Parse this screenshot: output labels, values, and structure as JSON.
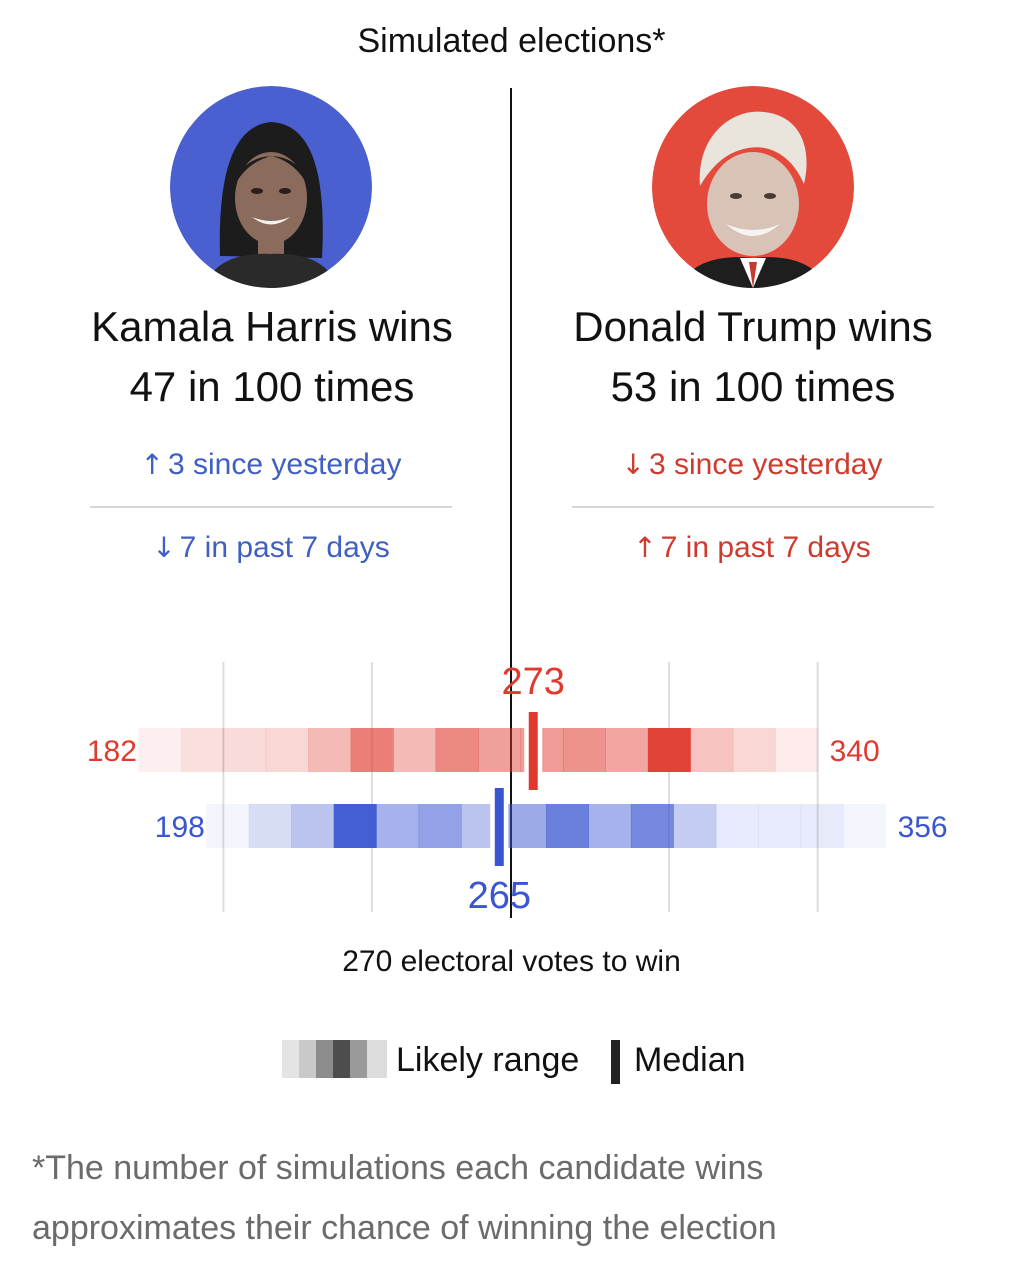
{
  "title": "Simulated elections*",
  "candidates": [
    {
      "name_line": "Kamala Harris wins",
      "odds_line": "47 in 100 times",
      "color": "#3f5fc4",
      "ring_color": "#4a5fd0",
      "change_day": {
        "arrow": "↑",
        "text": "3 since yesterday"
      },
      "change_week": {
        "arrow": "↓",
        "text": "7 in past 7 days"
      }
    },
    {
      "name_line": "Donald Trump wins",
      "odds_line": "53 in 100 times",
      "color": "#d03a2e",
      "ring_color": "#e34a3c",
      "change_day": {
        "arrow": "↓",
        "text": "3 since yesterday"
      },
      "change_week": {
        "arrow": "↑",
        "text": "7 in past 7 days"
      }
    }
  ],
  "chart_data": {
    "type": "heatmap",
    "x_axis": {
      "min": 170,
      "max": 370,
      "gridlines": [
        200,
        235,
        270,
        305,
        340
      ],
      "threshold": 270
    },
    "threshold_label": "270 electoral votes to win",
    "bin_width": 10,
    "series": [
      {
        "candidate": "Donald Trump",
        "color": "#e0392e",
        "min_label": "182",
        "max_label": "340",
        "bin_starts": [
          180,
          190,
          200,
          210,
          220,
          230,
          240,
          250,
          260,
          270,
          280,
          290,
          300,
          310,
          320,
          330
        ],
        "intensity": [
          0.08,
          0.16,
          0.18,
          0.2,
          0.35,
          0.65,
          0.35,
          0.6,
          0.48,
          0.5,
          0.55,
          0.45,
          0.95,
          0.3,
          0.2,
          0.1
        ],
        "range": [
          182,
          340
        ],
        "median": 273,
        "median_label": "273"
      },
      {
        "candidate": "Kamala Harris",
        "color": "#3a55d2",
        "min_label": "198",
        "max_label": "356",
        "bin_starts": [
          196,
          206,
          216,
          226,
          236,
          246,
          256,
          266,
          276,
          286,
          296,
          306,
          316,
          326,
          336,
          346
        ],
        "intensity": [
          0.06,
          0.2,
          0.35,
          0.95,
          0.45,
          0.55,
          0.35,
          0.5,
          0.75,
          0.45,
          0.7,
          0.3,
          0.12,
          0.12,
          0.12,
          0.06
        ],
        "range": [
          198,
          356
        ],
        "median": 265,
        "median_label": "265"
      }
    ]
  },
  "legend": {
    "range_label": "Likely range",
    "median_label": "Median",
    "swatch_colors": [
      "#e4e4e4",
      "#c9c9c9",
      "#8c8c8c",
      "#4d4d4d",
      "#9a9a9a",
      "#dcdcdc"
    ]
  },
  "footnote_line1": "*The number of simulations each candidate wins",
  "footnote_line2": "approximates their chance of winning the election",
  "colors": {
    "harris_blue": "#3f5fc4",
    "trump_red": "#d03a2e",
    "text": "#111111",
    "muted": "#6b6b6b"
  }
}
